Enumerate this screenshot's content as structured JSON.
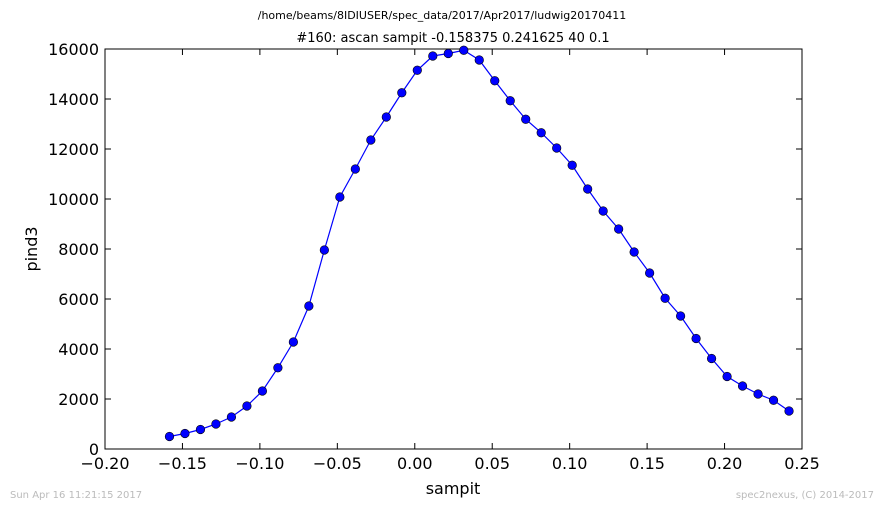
{
  "figure": {
    "suptitle": "/home/beams/8IDIUSER/spec_data/2017/Apr2017/ludwig20170411",
    "footer_left": "Sun Apr 16 11:21:15 2017",
    "footer_right": "spec2nexus, (C) 2014-2017"
  },
  "chart_data": {
    "type": "line",
    "title": "#160: ascan  sampit -0.158375 0.241625  40 0.1",
    "xlabel": "sampit",
    "ylabel": "pind3",
    "xlim": [
      -0.2,
      0.25
    ],
    "ylim": [
      0,
      16000
    ],
    "xticks": [
      -0.2,
      -0.15,
      -0.1,
      -0.05,
      0.0,
      0.05,
      0.1,
      0.15,
      0.2,
      0.25
    ],
    "xtick_labels": [
      "−0.20",
      "−0.15",
      "−0.10",
      "−0.05",
      "0.00",
      "0.05",
      "0.10",
      "0.15",
      "0.20",
      "0.25"
    ],
    "yticks": [
      0,
      2000,
      4000,
      6000,
      8000,
      10000,
      12000,
      14000,
      16000
    ],
    "ytick_labels": [
      "0",
      "2000",
      "4000",
      "6000",
      "8000",
      "10000",
      "12000",
      "14000",
      "16000"
    ],
    "grid": false,
    "series": [
      {
        "color": "#0000ff",
        "marker": "circle",
        "x": [
          -0.158375,
          -0.148375,
          -0.138375,
          -0.128375,
          -0.118375,
          -0.108375,
          -0.098375,
          -0.088375,
          -0.078375,
          -0.068375,
          -0.058375,
          -0.048375,
          -0.038375,
          -0.028375,
          -0.018375,
          -0.008375,
          0.001625,
          0.011625,
          0.021625,
          0.031625,
          0.041625,
          0.051625,
          0.061625,
          0.071625,
          0.081625,
          0.091625,
          0.101625,
          0.111625,
          0.121625,
          0.131625,
          0.141625,
          0.151625,
          0.161625,
          0.171625,
          0.181625,
          0.191625,
          0.201625,
          0.211625,
          0.221625,
          0.231625,
          0.241625
        ],
        "y": [
          500,
          620,
          780,
          1000,
          1280,
          1720,
          2320,
          3250,
          4280,
          5720,
          7960,
          10080,
          11200,
          12360,
          13280,
          14250,
          15150,
          15720,
          15820,
          15950,
          15560,
          14730,
          13930,
          13190,
          12650,
          12040,
          11350,
          10400,
          9520,
          8800,
          7880,
          7040,
          6030,
          5320,
          4420,
          3620,
          2900,
          2520,
          2200,
          1950,
          1520
        ]
      }
    ]
  }
}
